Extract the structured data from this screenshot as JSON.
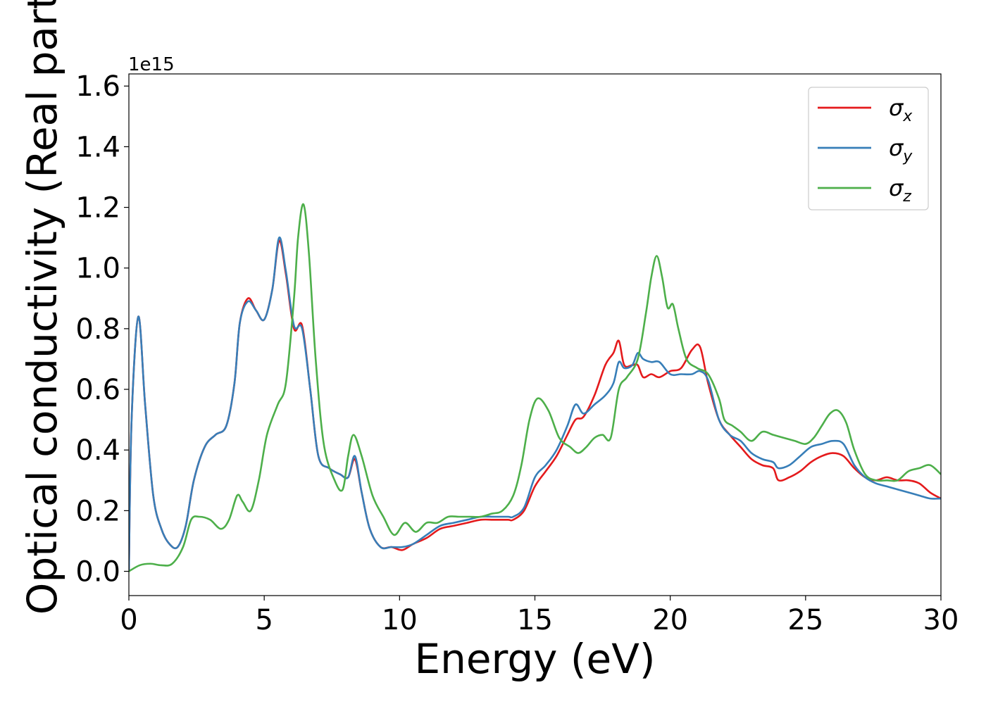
{
  "chart_data": {
    "type": "line",
    "title": "",
    "xlabel": "Energy (eV)",
    "ylabel": "Optical conductivity (Real part)",
    "y_offset_label": "1e15",
    "xlim": [
      0,
      30
    ],
    "ylim": [
      -0.08,
      1.64
    ],
    "xticks": [
      0,
      5,
      10,
      15,
      20,
      25,
      30
    ],
    "xtick_labels": [
      "0",
      "5",
      "10",
      "15",
      "20",
      "25",
      "30"
    ],
    "yticks": [
      0.0,
      0.2,
      0.4,
      0.6,
      0.8,
      1.0,
      1.2,
      1.4,
      1.6
    ],
    "ytick_labels": [
      "0.0",
      "0.2",
      "0.4",
      "0.6",
      "0.8",
      "1.0",
      "1.2",
      "1.4",
      "1.6"
    ],
    "grid": false,
    "legend_position": "top-right",
    "series": [
      {
        "name": "σx",
        "legend_base": "σ",
        "legend_sub": "x",
        "color": "#e41a1c",
        "x": [
          0.0,
          0.1,
          0.35,
          0.6,
          0.9,
          1.2,
          1.5,
          1.8,
          2.1,
          2.4,
          2.8,
          3.2,
          3.6,
          3.9,
          4.1,
          4.4,
          4.7,
          5.0,
          5.3,
          5.55,
          5.8,
          6.1,
          6.4,
          6.7,
          7.0,
          7.4,
          7.8,
          8.1,
          8.35,
          8.6,
          8.9,
          9.3,
          9.7,
          10.1,
          10.5,
          11.0,
          11.5,
          12.0,
          12.5,
          13.0,
          13.5,
          14.0,
          14.2,
          14.6,
          15.0,
          15.4,
          15.8,
          16.2,
          16.5,
          16.8,
          17.2,
          17.6,
          17.9,
          18.1,
          18.3,
          18.6,
          18.8,
          19.0,
          19.3,
          19.6,
          20.0,
          20.4,
          20.8,
          21.1,
          21.4,
          21.8,
          22.2,
          22.6,
          23.0,
          23.4,
          23.8,
          24.0,
          24.4,
          24.8,
          25.2,
          25.6,
          26.0,
          26.4,
          26.8,
          27.2,
          27.6,
          28.0,
          28.4,
          28.8,
          29.2,
          29.6,
          30.0
        ],
        "y": [
          0.0,
          0.5,
          0.84,
          0.55,
          0.25,
          0.14,
          0.09,
          0.08,
          0.15,
          0.3,
          0.41,
          0.45,
          0.48,
          0.62,
          0.82,
          0.9,
          0.86,
          0.83,
          0.93,
          1.09,
          0.98,
          0.8,
          0.81,
          0.6,
          0.38,
          0.34,
          0.32,
          0.31,
          0.37,
          0.26,
          0.14,
          0.08,
          0.08,
          0.07,
          0.09,
          0.11,
          0.14,
          0.15,
          0.16,
          0.17,
          0.17,
          0.17,
          0.17,
          0.2,
          0.28,
          0.33,
          0.38,
          0.45,
          0.5,
          0.51,
          0.58,
          0.68,
          0.72,
          0.76,
          0.68,
          0.68,
          0.68,
          0.64,
          0.65,
          0.64,
          0.66,
          0.67,
          0.73,
          0.74,
          0.62,
          0.5,
          0.45,
          0.41,
          0.37,
          0.35,
          0.34,
          0.3,
          0.31,
          0.33,
          0.36,
          0.38,
          0.39,
          0.38,
          0.34,
          0.31,
          0.3,
          0.31,
          0.3,
          0.3,
          0.29,
          0.26,
          0.24
        ]
      },
      {
        "name": "σy",
        "legend_base": "σ",
        "legend_sub": "y",
        "color": "#377eb8",
        "x": [
          0.0,
          0.1,
          0.35,
          0.6,
          0.9,
          1.2,
          1.5,
          1.8,
          2.1,
          2.4,
          2.8,
          3.2,
          3.6,
          3.9,
          4.1,
          4.4,
          4.7,
          5.0,
          5.3,
          5.55,
          5.8,
          6.1,
          6.4,
          6.7,
          7.0,
          7.4,
          7.8,
          8.1,
          8.35,
          8.6,
          8.9,
          9.3,
          9.7,
          10.1,
          10.5,
          11.0,
          11.5,
          12.0,
          12.5,
          13.0,
          13.5,
          14.0,
          14.2,
          14.6,
          15.0,
          15.4,
          15.8,
          16.2,
          16.5,
          16.8,
          17.2,
          17.6,
          17.9,
          18.1,
          18.3,
          18.6,
          18.8,
          19.0,
          19.3,
          19.6,
          20.0,
          20.4,
          20.8,
          21.1,
          21.4,
          21.8,
          22.2,
          22.6,
          23.0,
          23.4,
          23.8,
          24.0,
          24.4,
          24.8,
          25.2,
          25.6,
          26.0,
          26.4,
          26.8,
          27.2,
          27.6,
          28.0,
          28.4,
          28.8,
          29.2,
          29.6,
          30.0
        ],
        "y": [
          0.0,
          0.5,
          0.84,
          0.55,
          0.25,
          0.14,
          0.09,
          0.08,
          0.15,
          0.3,
          0.41,
          0.45,
          0.48,
          0.62,
          0.82,
          0.89,
          0.86,
          0.83,
          0.93,
          1.1,
          0.99,
          0.81,
          0.8,
          0.6,
          0.38,
          0.34,
          0.32,
          0.31,
          0.38,
          0.26,
          0.14,
          0.08,
          0.08,
          0.08,
          0.09,
          0.12,
          0.15,
          0.16,
          0.17,
          0.18,
          0.18,
          0.18,
          0.18,
          0.21,
          0.31,
          0.35,
          0.4,
          0.48,
          0.55,
          0.52,
          0.55,
          0.58,
          0.62,
          0.69,
          0.67,
          0.68,
          0.72,
          0.7,
          0.69,
          0.69,
          0.65,
          0.65,
          0.65,
          0.66,
          0.63,
          0.5,
          0.45,
          0.43,
          0.39,
          0.37,
          0.36,
          0.34,
          0.35,
          0.38,
          0.41,
          0.42,
          0.43,
          0.42,
          0.35,
          0.31,
          0.29,
          0.28,
          0.27,
          0.26,
          0.25,
          0.24,
          0.24
        ]
      },
      {
        "name": "σz",
        "legend_base": "σ",
        "legend_sub": "z",
        "color": "#4daf4a",
        "x": [
          0.0,
          0.4,
          0.8,
          1.2,
          1.6,
          2.0,
          2.3,
          2.6,
          3.0,
          3.4,
          3.7,
          4.0,
          4.2,
          4.5,
          4.8,
          5.1,
          5.5,
          5.8,
          6.1,
          6.25,
          6.45,
          6.65,
          6.9,
          7.2,
          7.6,
          7.9,
          8.1,
          8.3,
          8.6,
          9.0,
          9.4,
          9.8,
          10.2,
          10.6,
          11.0,
          11.4,
          11.8,
          12.2,
          12.6,
          13.0,
          13.4,
          13.8,
          14.2,
          14.5,
          14.8,
          15.1,
          15.5,
          15.9,
          16.3,
          16.6,
          16.9,
          17.2,
          17.5,
          17.8,
          18.1,
          18.4,
          18.8,
          19.1,
          19.3,
          19.5,
          19.7,
          19.9,
          20.1,
          20.3,
          20.6,
          21.0,
          21.4,
          21.8,
          22.0,
          22.3,
          22.6,
          23.0,
          23.4,
          23.8,
          24.2,
          24.6,
          25.0,
          25.3,
          25.6,
          25.9,
          26.2,
          26.5,
          26.8,
          27.2,
          27.6,
          28.0,
          28.4,
          28.8,
          29.2,
          29.6,
          30.0
        ],
        "y": [
          0.0,
          0.02,
          0.025,
          0.02,
          0.025,
          0.08,
          0.17,
          0.18,
          0.17,
          0.14,
          0.17,
          0.25,
          0.23,
          0.2,
          0.3,
          0.45,
          0.55,
          0.62,
          0.9,
          1.1,
          1.21,
          1.05,
          0.7,
          0.42,
          0.3,
          0.27,
          0.38,
          0.45,
          0.38,
          0.25,
          0.18,
          0.12,
          0.16,
          0.13,
          0.16,
          0.16,
          0.18,
          0.18,
          0.18,
          0.18,
          0.19,
          0.2,
          0.25,
          0.35,
          0.5,
          0.57,
          0.53,
          0.44,
          0.41,
          0.39,
          0.41,
          0.44,
          0.45,
          0.44,
          0.6,
          0.64,
          0.7,
          0.85,
          0.97,
          1.04,
          0.97,
          0.87,
          0.88,
          0.8,
          0.7,
          0.67,
          0.65,
          0.57,
          0.5,
          0.48,
          0.46,
          0.43,
          0.46,
          0.45,
          0.44,
          0.43,
          0.42,
          0.44,
          0.48,
          0.52,
          0.53,
          0.49,
          0.4,
          0.32,
          0.3,
          0.3,
          0.3,
          0.33,
          0.34,
          0.35,
          0.32
        ]
      }
    ]
  }
}
